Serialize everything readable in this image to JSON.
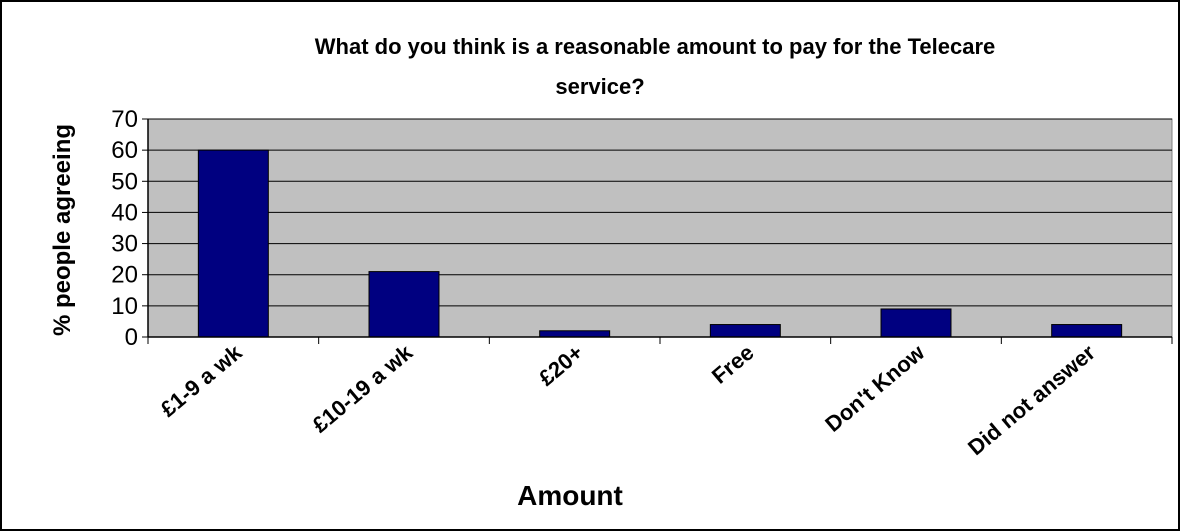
{
  "chart_data": {
    "type": "bar",
    "title": "What do you think is a reasonable amount to pay for the Telecare service?",
    "title_lines": [
      "What do you think is a reasonable amount to pay for the Telecare",
      "service?"
    ],
    "xlabel": "Amount",
    "ylabel": "% people agreeing",
    "categories": [
      "£1-9 a wk",
      "£10-19 a wk",
      "£20+",
      "Free",
      "Don't Know",
      "Did not answer"
    ],
    "values": [
      60,
      21,
      2,
      4,
      9,
      4
    ],
    "ylim": [
      0,
      70
    ],
    "yticks": [
      0,
      10,
      20,
      30,
      40,
      50,
      60,
      70
    ],
    "grid": true,
    "legend": "none",
    "colors": {
      "bar_fill": "#000080",
      "plot_background": "#c0c0c0",
      "chart_background": "#ffffff",
      "gridline": "#000000"
    }
  }
}
